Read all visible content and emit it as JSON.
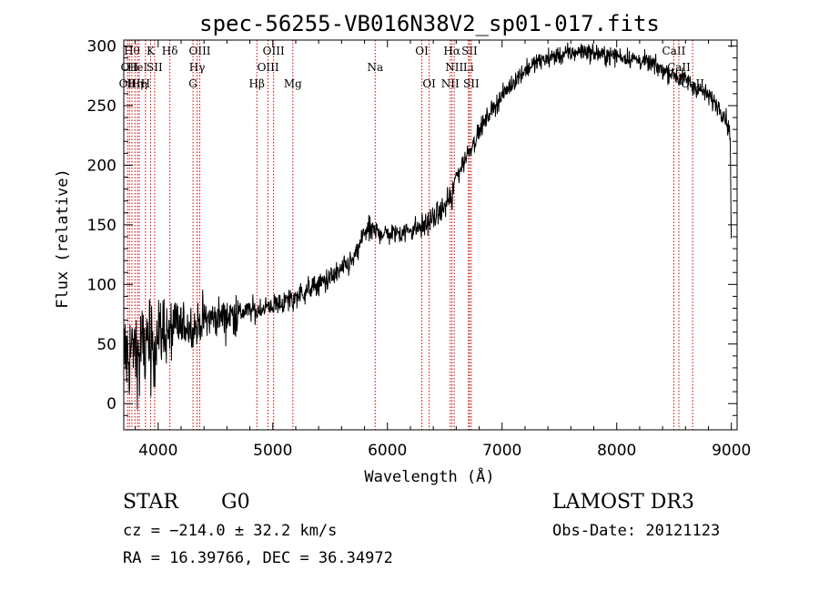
{
  "chart_data": {
    "type": "line",
    "title": "spec-56255-VB016N38V2_sp01-017.fits",
    "xlabel": "Wavelength (Å)",
    "ylabel": "Flux (relative)",
    "xlim": [
      3700,
      9050
    ],
    "ylim": [
      -22,
      305
    ],
    "xticks": [
      4000,
      5000,
      6000,
      7000,
      8000,
      9000
    ],
    "yticks": [
      0,
      50,
      100,
      150,
      200,
      250,
      300
    ],
    "grid": false,
    "line_color": "#000000",
    "marker_color": "#cc0000",
    "spectrum_envelope": {
      "x": [
        3700,
        3750,
        3800,
        3850,
        3900,
        3950,
        4000,
        4100,
        4200,
        4300,
        4400,
        4500,
        4600,
        4700,
        4800,
        4900,
        5000,
        5100,
        5200,
        5300,
        5400,
        5500,
        5600,
        5700,
        5750,
        5800,
        5900,
        6000,
        6100,
        6200,
        6300,
        6400,
        6500,
        6550,
        6600,
        6700,
        6800,
        6900,
        7000,
        7100,
        7200,
        7300,
        7400,
        7500,
        7600,
        7700,
        7800,
        7900,
        8000,
        8100,
        8200,
        8300,
        8400,
        8500,
        8600,
        8700,
        8800,
        8900,
        8950,
        8990,
        9000
      ],
      "y": [
        40,
        42,
        45,
        48,
        52,
        55,
        58,
        62,
        64,
        66,
        70,
        72,
        74,
        76,
        78,
        80,
        82,
        85,
        90,
        95,
        100,
        105,
        112,
        120,
        130,
        145,
        145,
        142,
        143,
        146,
        148,
        155,
        165,
        175,
        190,
        210,
        228,
        245,
        258,
        270,
        280,
        286,
        290,
        292,
        294,
        296,
        294,
        292,
        292,
        290,
        288,
        285,
        280,
        276,
        272,
        265,
        258,
        248,
        240,
        225,
        135
      ]
    },
    "line_markers": [
      {
        "wavelength": 3734,
        "label": "OII",
        "row": 3
      },
      {
        "wavelength": 3750,
        "label": "OII",
        "row": 2
      },
      {
        "wavelength": 3771,
        "label": "Hθ",
        "row": 1
      },
      {
        "wavelength": 3798,
        "label": "Hη",
        "row": 3
      },
      {
        "wavelength": 3820,
        "label": "HeI",
        "row": 2
      },
      {
        "wavelength": 3835,
        "label": "Hη",
        "row": 3
      },
      {
        "wavelength": 3889,
        "label": "H",
        "row": 3
      },
      {
        "wavelength": 3934,
        "label": "K",
        "row": 1
      },
      {
        "wavelength": 3969,
        "label": "SII",
        "row": 2
      },
      {
        "wavelength": 4102,
        "label": "Hδ",
        "row": 1
      },
      {
        "wavelength": 4304,
        "label": "G",
        "row": 3
      },
      {
        "wavelength": 4340,
        "label": "Hγ",
        "row": 2
      },
      {
        "wavelength": 4363,
        "label": "OIII",
        "row": 1
      },
      {
        "wavelength": 4861,
        "label": "Hβ",
        "row": 3
      },
      {
        "wavelength": 4959,
        "label": "OIII",
        "row": 2
      },
      {
        "wavelength": 5007,
        "label": "OIII",
        "row": 1
      },
      {
        "wavelength": 5175,
        "label": "Mg",
        "row": 3
      },
      {
        "wavelength": 5893,
        "label": "Na",
        "row": 2
      },
      {
        "wavelength": 6300,
        "label": "OI",
        "row": 1
      },
      {
        "wavelength": 6364,
        "label": "OI",
        "row": 3
      },
      {
        "wavelength": 6548,
        "label": "NII",
        "row": 3
      },
      {
        "wavelength": 6563,
        "label": "Hα",
        "row": 1
      },
      {
        "wavelength": 6583,
        "label": "NII",
        "row": 2
      },
      {
        "wavelength": 6707,
        "label": "Li",
        "row": 2
      },
      {
        "wavelength": 6716,
        "label": "SII",
        "row": 1
      },
      {
        "wavelength": 6731,
        "label": "SII",
        "row": 3
      },
      {
        "wavelength": 8498,
        "label": "CaII",
        "row": 1
      },
      {
        "wavelength": 8542,
        "label": "CaII",
        "row": 2
      },
      {
        "wavelength": 8662,
        "label": "CaII",
        "row": 3
      }
    ]
  },
  "info": {
    "class": "STAR",
    "subclass": "G0",
    "survey": "LAMOST DR3",
    "cz": "cz = −214.0 ± 32.2 km/s",
    "obs_date": "Obs-Date: 20121123",
    "coords": "RA =  16.39766, DEC =  36.34972"
  }
}
